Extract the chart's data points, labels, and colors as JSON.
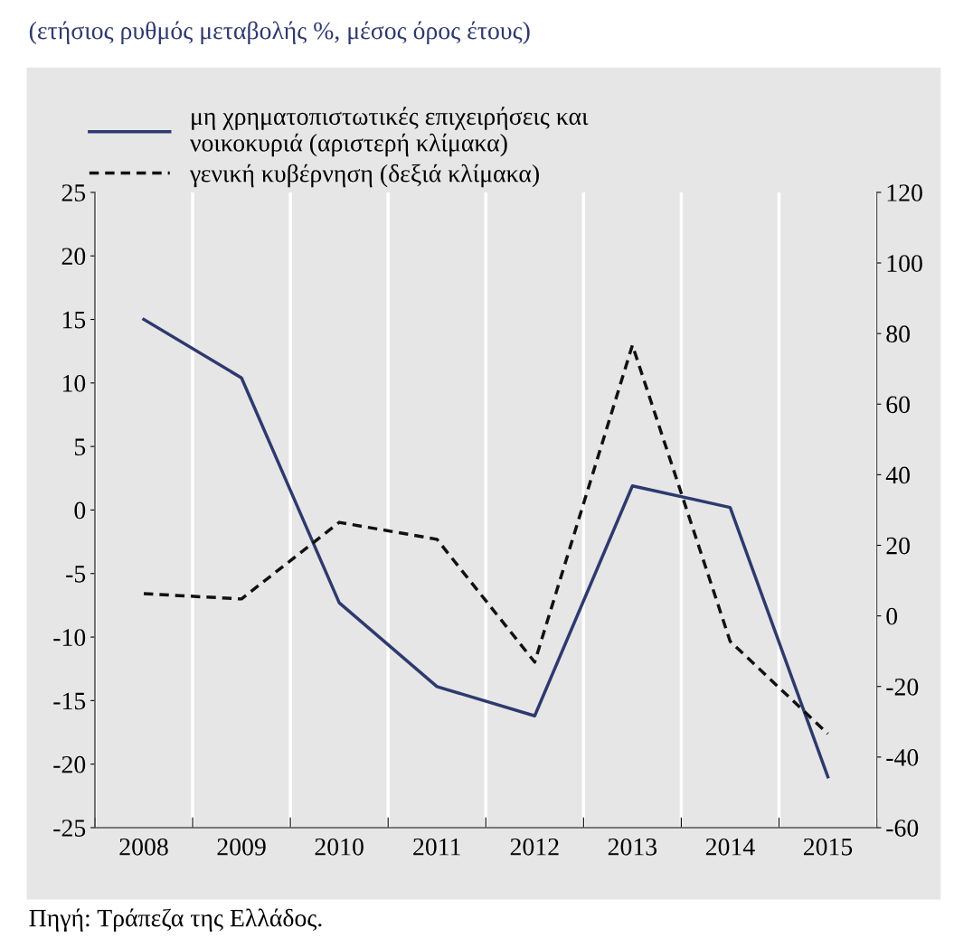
{
  "chart_data": {
    "type": "line",
    "title": "(ετήσιος ρυθμός μεταβολής %, μέσος όρος έτους)",
    "categories": [
      "2008",
      "2009",
      "2010",
      "2011",
      "2012",
      "2013",
      "2014",
      "2015"
    ],
    "series": [
      {
        "name": "μη χρηματοπιστωτικές επιχειρήσεις και\nνοικοκυριά (αριστερή κλίμακα)",
        "color": "#2e3a6e",
        "line_style": "solid",
        "values": [
          15.0,
          10.4,
          -7.3,
          -13.9,
          -16.2,
          1.9,
          0.2,
          -21.0
        ]
      },
      {
        "name": "γενική κυβέρνηση (δεξιά κλίμακα)",
        "color": "#111111",
        "line_style": "dashed",
        "axis": "y2",
        "values": [
          6.3,
          4.8,
          26.5,
          21.7,
          -13.1,
          76.7,
          -7.2,
          -33.4
        ]
      }
    ],
    "ylim": [
      -25,
      25
    ],
    "yticks": [
      -25,
      -20,
      -15,
      -10,
      -5,
      0,
      5,
      10,
      15,
      20,
      25
    ],
    "y2lim": [
      -60,
      120
    ],
    "y2ticks": [
      -60,
      -40,
      -20,
      0,
      20,
      40,
      60,
      80,
      100,
      120
    ],
    "grid": "x",
    "legend": "top",
    "marker": "none",
    "annotations": [
      "Πηγή: Τράπεζα της Ελλάδος."
    ]
  }
}
